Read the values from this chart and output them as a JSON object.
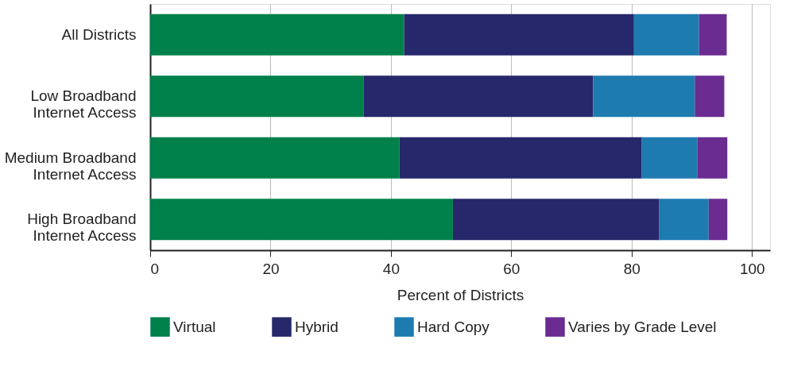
{
  "chart_data": {
    "type": "bar",
    "orientation": "horizontal",
    "stacked": true,
    "xlabel": "Percent of Districts",
    "categories": [
      "All Districts",
      "Low Broadband\nInternet Access",
      "Medium Broadband\nInternet Access",
      "High Broadband\nInternet Access"
    ],
    "series": [
      {
        "name": "Virtual",
        "color": "#00804a",
        "values": [
          42.2,
          35.5,
          41.4,
          50.3
        ]
      },
      {
        "name": "Hybrid",
        "color": "#27276b",
        "values": [
          38.2,
          38.1,
          40.3,
          34.3
        ]
      },
      {
        "name": "Hard Copy",
        "color": "#1e7bb0",
        "values": [
          10.8,
          16.9,
          9.2,
          8.2
        ]
      },
      {
        "name": "Varies by Grade Level",
        "color": "#6a2c91",
        "values": [
          4.6,
          4.9,
          5.0,
          3.1
        ]
      }
    ],
    "xlim": [
      0,
      103
    ],
    "xticks": [
      0,
      20,
      40,
      60,
      80,
      100
    ],
    "grid": "x",
    "legend": "bottom"
  }
}
